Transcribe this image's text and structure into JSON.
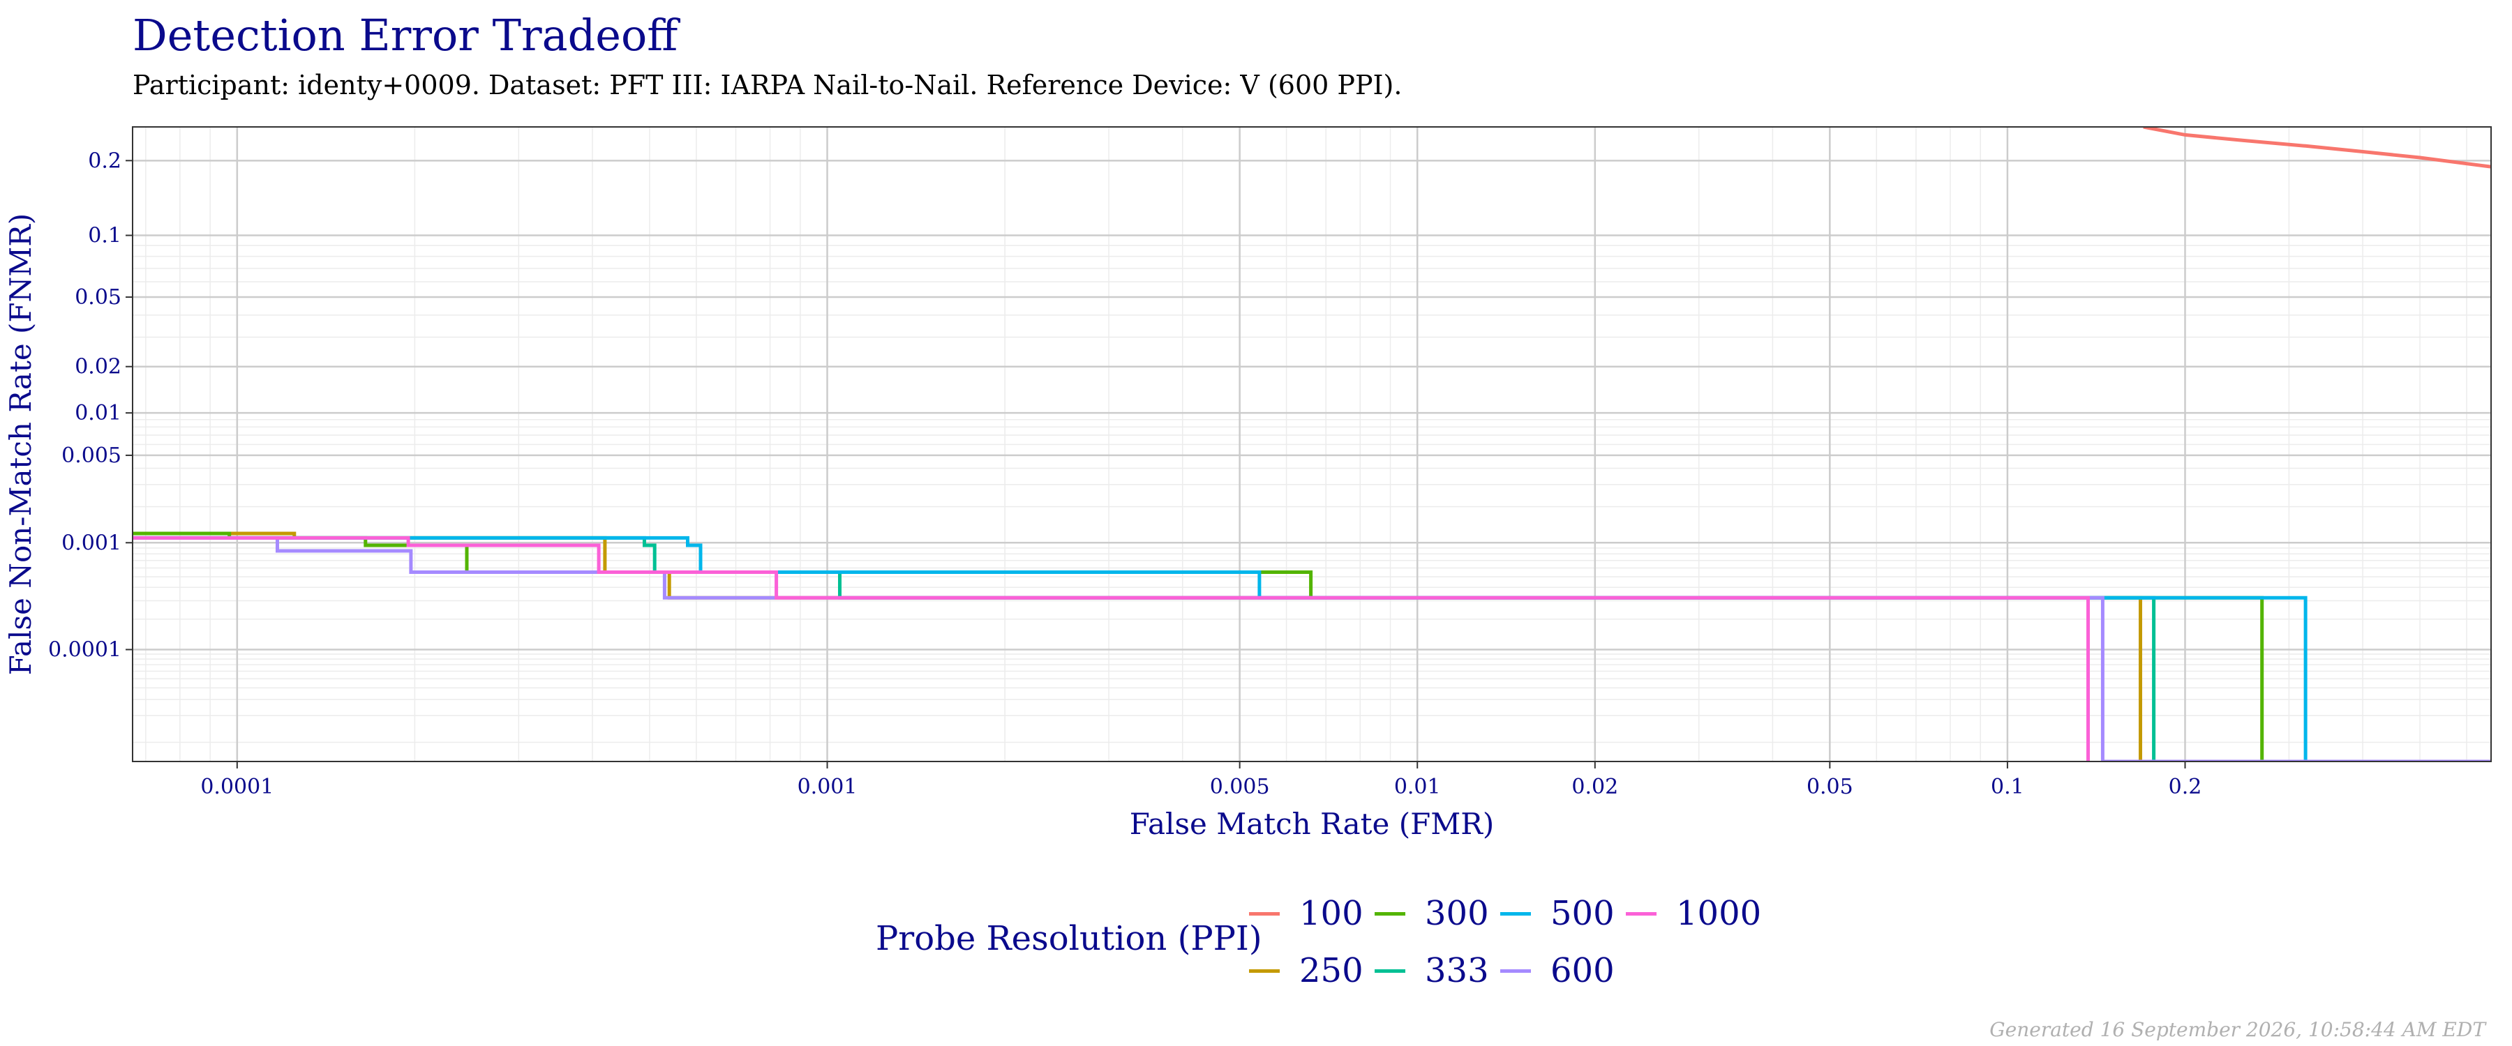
{
  "title": "Detection Error Tradeoff",
  "subtitle": "Participant: identy+0009. Dataset: PFT III: IARPA Nail-to-Nail. Reference Device: V (600 PPI).",
  "footer": "Generated 16 September 2026, 10:58:44 AM EDT",
  "colors": {
    "title": "#0a0a8c",
    "grid_major": "#cccccc",
    "grid_minor": "#ececec",
    "panel_border": "#333333"
  },
  "chart_data": {
    "type": "line",
    "xlabel": "False Match Rate (FMR)",
    "ylabel": "False Non-Match Rate (FNMR)",
    "x_scale": "log",
    "y_scale": "probit",
    "xlim": [
      6.65e-05,
      0.66
    ],
    "ylim": [
      6e-06,
      0.26
    ],
    "x_ticks": [
      {
        "value": 0.0001,
        "label": "0.0001"
      },
      {
        "value": 0.001,
        "label": "0.001"
      },
      {
        "value": 0.005,
        "label": "0.005"
      },
      {
        "value": 0.01,
        "label": "0.01"
      },
      {
        "value": 0.02,
        "label": "0.02"
      },
      {
        "value": 0.05,
        "label": "0.05"
      },
      {
        "value": 0.1,
        "label": "0.1"
      },
      {
        "value": 0.2,
        "label": "0.2"
      }
    ],
    "y_ticks": [
      {
        "value": 0.0001,
        "label": "0.0001"
      },
      {
        "value": 0.001,
        "label": "0.001"
      },
      {
        "value": 0.005,
        "label": "0.005"
      },
      {
        "value": 0.01,
        "label": "0.01"
      },
      {
        "value": 0.02,
        "label": "0.02"
      },
      {
        "value": 0.05,
        "label": "0.05"
      },
      {
        "value": 0.1,
        "label": "0.1"
      },
      {
        "value": 0.2,
        "label": "0.2"
      }
    ],
    "grid": true,
    "legend": {
      "title": "Probe Resolution (PPI)",
      "position": "bottom"
    },
    "series": [
      {
        "name": "100",
        "color": "#f8766d",
        "points": [
          [
            0.17,
            0.26
          ],
          [
            0.2,
            0.245
          ],
          [
            0.25,
            0.235
          ],
          [
            0.32,
            0.225
          ],
          [
            0.4,
            0.215
          ],
          [
            0.5,
            0.205
          ],
          [
            0.66,
            0.19
          ]
        ]
      },
      {
        "name": "250",
        "color": "#c49a00",
        "points": [
          [
            6.65e-05,
            0.0012
          ],
          [
            0.000125,
            0.0012
          ],
          [
            0.000125,
            0.0011
          ],
          [
            0.00042,
            0.0011
          ],
          [
            0.00042,
            0.00085
          ],
          [
            0.00042,
            0.00055
          ],
          [
            0.00054,
            0.00055
          ],
          [
            0.00054,
            0.00032
          ],
          [
            0.168,
            0.00032
          ],
          [
            0.168,
            6e-06
          ]
        ]
      },
      {
        "name": "300",
        "color": "#53b400",
        "points": [
          [
            6.65e-05,
            0.0012
          ],
          [
            9.7e-05,
            0.0012
          ],
          [
            9.7e-05,
            0.0011
          ],
          [
            0.000165,
            0.0011
          ],
          [
            0.000165,
            0.00095
          ],
          [
            0.000245,
            0.00095
          ],
          [
            0.000245,
            0.00078
          ],
          [
            0.000245,
            0.00055
          ],
          [
            0.0066,
            0.00055
          ],
          [
            0.0066,
            0.00032
          ],
          [
            0.27,
            0.00032
          ],
          [
            0.27,
            6e-06
          ]
        ]
      },
      {
        "name": "333",
        "color": "#00c094",
        "points": [
          [
            6.65e-05,
            0.0011
          ],
          [
            0.00049,
            0.0011
          ],
          [
            0.00049,
            0.00095
          ],
          [
            0.00051,
            0.00095
          ],
          [
            0.00051,
            0.00055
          ],
          [
            0.00105,
            0.00055
          ],
          [
            0.00105,
            0.00032
          ],
          [
            0.177,
            0.00032
          ],
          [
            0.177,
            6e-06
          ]
        ]
      },
      {
        "name": "500",
        "color": "#00b6eb",
        "points": [
          [
            6.65e-05,
            0.0011
          ],
          [
            0.00058,
            0.0011
          ],
          [
            0.00058,
            0.00095
          ],
          [
            0.00061,
            0.00095
          ],
          [
            0.00061,
            0.00055
          ],
          [
            0.0054,
            0.00055
          ],
          [
            0.0054,
            0.00032
          ],
          [
            0.32,
            0.00032
          ],
          [
            0.32,
            6e-06
          ]
        ]
      },
      {
        "name": "600",
        "color": "#a58aff",
        "points": [
          [
            6.65e-05,
            0.0011
          ],
          [
            0.000117,
            0.0011
          ],
          [
            0.000117,
            0.00085
          ],
          [
            0.000197,
            0.00085
          ],
          [
            0.000197,
            0.00055
          ],
          [
            0.00053,
            0.00055
          ],
          [
            0.00053,
            0.00032
          ],
          [
            0.145,
            0.00032
          ],
          [
            0.145,
            6e-06
          ],
          [
            0.66,
            6e-06
          ]
        ]
      },
      {
        "name": "1000",
        "color": "#fb61d7",
        "points": [
          [
            6.65e-05,
            0.0011
          ],
          [
            0.000195,
            0.0011
          ],
          [
            0.000195,
            0.00095
          ],
          [
            0.00041,
            0.00095
          ],
          [
            0.00041,
            0.00055
          ],
          [
            0.00082,
            0.00055
          ],
          [
            0.00082,
            0.00032
          ],
          [
            0.137,
            0.00032
          ],
          [
            0.137,
            6e-06
          ]
        ]
      }
    ]
  }
}
